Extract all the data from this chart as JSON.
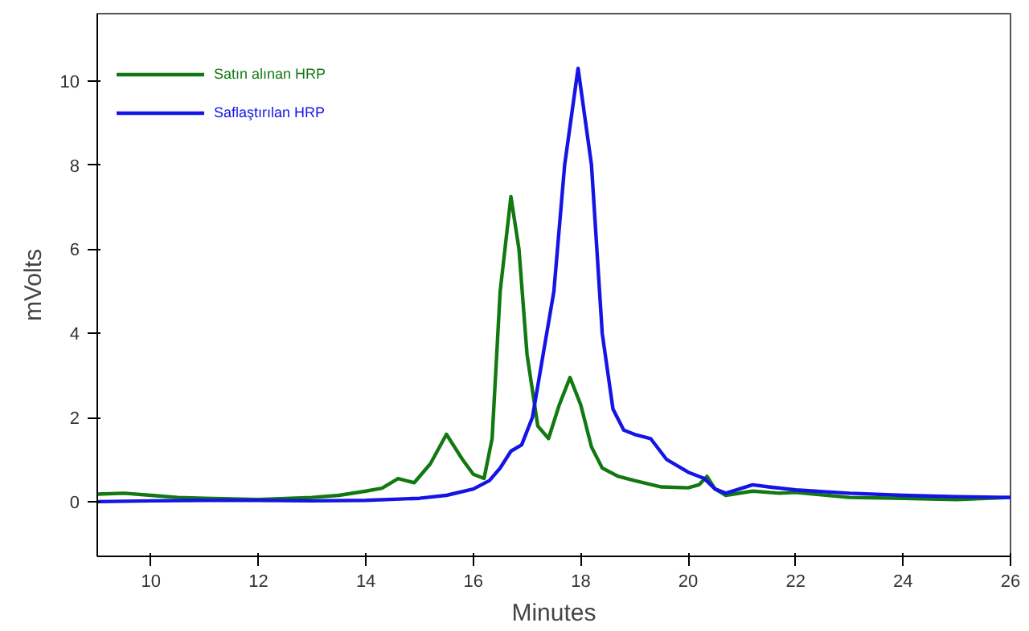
{
  "chart_data": {
    "type": "line",
    "xlabel": "Minutes",
    "ylabel": "mVolts",
    "xlim": [
      9,
      26
    ],
    "ylim": [
      -1.3,
      11.6
    ],
    "xticks": [
      10,
      12,
      14,
      16,
      18,
      20,
      22,
      24,
      26
    ],
    "yticks": [
      0,
      2,
      4,
      6,
      8,
      10
    ],
    "grid": false,
    "legend": "top left",
    "line_style": "solid",
    "marker": "none",
    "series": [
      {
        "name": "Satın alınan HRP",
        "color": "#127812",
        "x": [
          9.0,
          9.5,
          10,
          10.5,
          11,
          12,
          13,
          13.5,
          14,
          14.3,
          14.6,
          14.9,
          15.2,
          15.5,
          15.8,
          16.0,
          16.2,
          16.35,
          16.5,
          16.7,
          16.85,
          17.0,
          17.2,
          17.4,
          17.6,
          17.8,
          18.0,
          18.2,
          18.4,
          18.7,
          19.0,
          19.5,
          20.0,
          20.2,
          20.35,
          20.5,
          20.7,
          21.2,
          21.7,
          22.0,
          23,
          24,
          25,
          26
        ],
        "values": [
          0.18,
          0.2,
          0.15,
          0.1,
          0.08,
          0.05,
          0.1,
          0.15,
          0.25,
          0.32,
          0.55,
          0.45,
          0.9,
          1.6,
          1.0,
          0.65,
          0.55,
          1.5,
          5.0,
          7.25,
          6.0,
          3.5,
          1.8,
          1.5,
          2.3,
          2.95,
          2.3,
          1.3,
          0.8,
          0.6,
          0.5,
          0.35,
          0.33,
          0.4,
          0.6,
          0.3,
          0.15,
          0.25,
          0.2,
          0.22,
          0.1,
          0.08,
          0.05,
          0.1
        ]
      },
      {
        "name": "Saflaştırılan HRP",
        "color": "#1414e6",
        "x": [
          9,
          10,
          11,
          12,
          13,
          14,
          15,
          15.5,
          16,
          16.3,
          16.5,
          16.7,
          16.9,
          17.1,
          17.3,
          17.5,
          17.7,
          17.95,
          18.2,
          18.4,
          18.6,
          18.8,
          19.0,
          19.3,
          19.6,
          20.0,
          20.3,
          20.5,
          20.7,
          21.2,
          21.5,
          22,
          23,
          24,
          25,
          26
        ],
        "values": [
          0.0,
          0.02,
          0.03,
          0.03,
          0.02,
          0.03,
          0.08,
          0.15,
          0.3,
          0.5,
          0.8,
          1.2,
          1.35,
          2.0,
          3.5,
          5.0,
          8.0,
          10.3,
          8.0,
          4.0,
          2.2,
          1.7,
          1.6,
          1.5,
          1.0,
          0.7,
          0.55,
          0.3,
          0.2,
          0.4,
          0.35,
          0.28,
          0.2,
          0.15,
          0.12,
          0.1
        ]
      }
    ]
  }
}
